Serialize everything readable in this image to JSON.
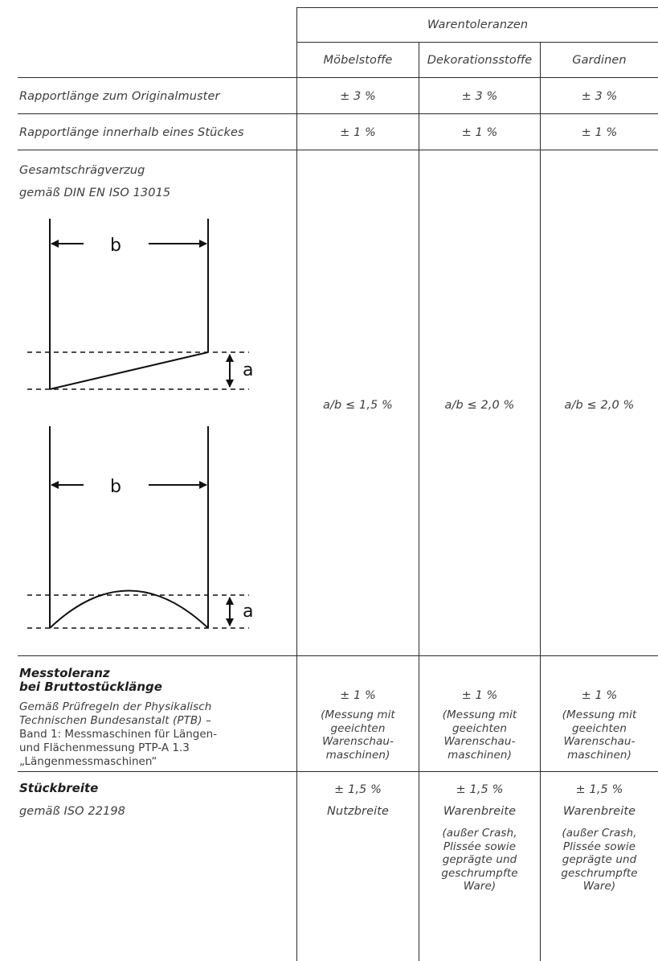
{
  "header": {
    "group_title": "Warentoleranzen",
    "columns": [
      "Möbelstoffe",
      "Dekorationsstoffe",
      "Gardinen"
    ]
  },
  "rows": {
    "rapport_original": {
      "label": "Rapportlänge zum Originalmuster",
      "values": [
        "± 3 %",
        "± 3 %",
        "± 3 %"
      ]
    },
    "rapport_stueck": {
      "label": "Rapportlänge innerhalb eines Stückes",
      "values": [
        "± 1 %",
        "± 1 %",
        "± 1 %"
      ]
    },
    "schraegverzug": {
      "label_line1": "Gesamtschrägverzug",
      "label_line2": "gemäß DIN EN ISO 13015",
      "values": [
        "a/b ≤ 1,5 %",
        "a/b ≤ 2,0 %",
        "a/b ≤ 2,0 %"
      ],
      "diagram": {
        "width_label": "b",
        "offset_label": "a"
      }
    },
    "messtoleranz": {
      "title_line1": "Messtoleranz",
      "title_line2": "bei Bruttostücklänge",
      "desc_line1": "Gemäß Prüfregeln der Physikalisch",
      "desc_line2": "Technischen Bundesanstalt (PTB) –",
      "desc_line3": "Band 1: Messmaschinen für Längen-",
      "desc_line4": "und Flächenmessung PTP-A 1.3",
      "desc_line5": "„Längenmessmaschinen“",
      "values": [
        "± 1 %",
        "± 1 %",
        "± 1 %"
      ],
      "note": [
        "(Messung mit",
        "geeichten",
        "Warenschau-",
        "maschinen)"
      ]
    },
    "stueckbreite": {
      "title": "Stückbreite",
      "subtitle": "gemäß ISO 22198",
      "values": [
        "± 1,5 %",
        "± 1,5 %",
        "± 1,5 %"
      ],
      "types": [
        "Nutzbreite",
        "Warenbreite",
        "Warenbreite"
      ],
      "exception": [
        "(außer Crash,",
        "Plissée sowie",
        "geprägte und",
        "geschrumpfte",
        "Ware)"
      ]
    }
  }
}
